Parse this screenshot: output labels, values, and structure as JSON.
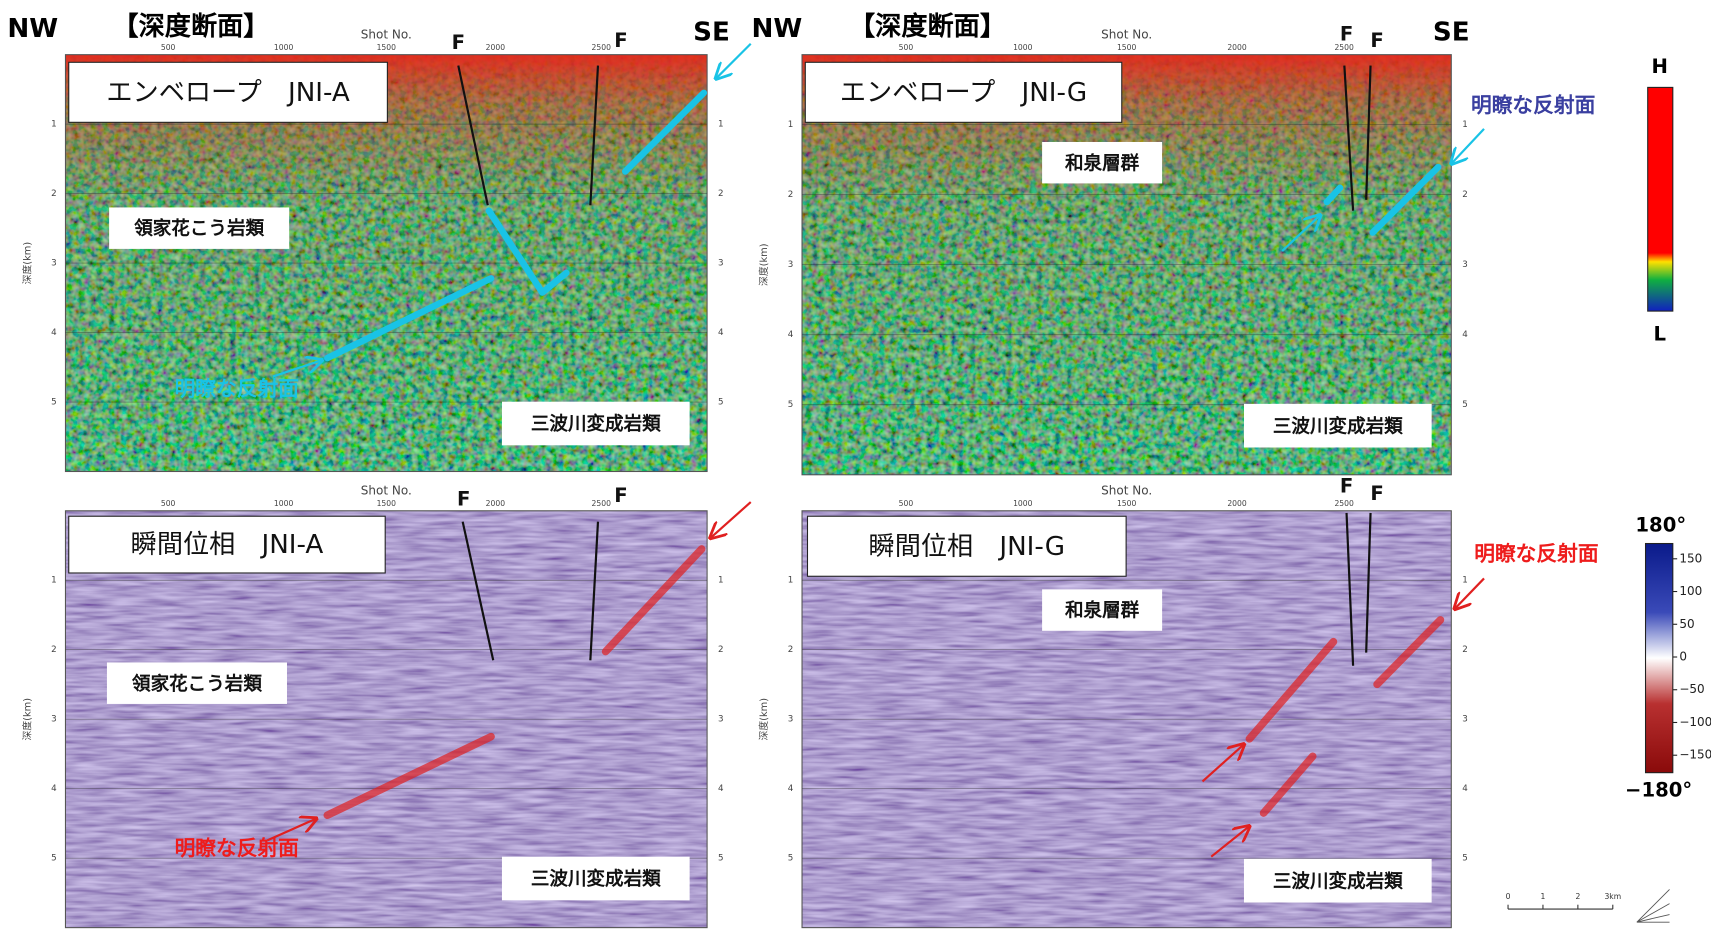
{
  "header": [
    {
      "left": "NW",
      "title": "【深度断面】",
      "right": "SE"
    },
    {
      "left": "NW",
      "title": "【深度断面】",
      "right": "SE"
    }
  ],
  "panels": [
    {
      "kind": "envelope",
      "label": "エンベロープ　JNI-A",
      "x_axis_title": "Shot No.",
      "x_ticks": [
        500,
        1000,
        1500,
        2000,
        2500
      ],
      "y_axis_title": "深度(km)",
      "y_ticks": [
        1,
        2,
        3,
        4,
        5
      ],
      "faults": [
        "F",
        "F"
      ],
      "units": [
        "領家花こう岩類",
        "三波川変成岩類"
      ],
      "reflector_label": "明瞭な反射面",
      "reflector_color": "#19c3e6",
      "reflector_label_color": "#19c3e6"
    },
    {
      "kind": "envelope",
      "label": "エンベロープ　JNI-G",
      "x_axis_title": "Shot No.",
      "x_ticks": [
        500,
        1000,
        1500,
        2000,
        2500
      ],
      "y_axis_title": "深度(km)",
      "y_ticks": [
        1,
        2,
        3,
        4,
        5
      ],
      "faults": [
        "F",
        "F"
      ],
      "units": [
        "和泉層群",
        "三波川変成岩類"
      ],
      "reflector_label": "明瞭な反射面",
      "reflector_color": "#19c3e6",
      "reflector_label_color": "#3a3fa0"
    },
    {
      "kind": "phase",
      "label": "瞬間位相　JNI-A",
      "x_axis_title": "Shot No.",
      "x_ticks": [
        500,
        1000,
        1500,
        2000,
        2500
      ],
      "y_axis_title": "深度(km)",
      "y_ticks": [
        1,
        2,
        3,
        4,
        5
      ],
      "faults": [
        "F",
        "F"
      ],
      "units": [
        "領家花こう岩類",
        "三波川変成岩類"
      ],
      "reflector_label": "明瞭な反射面",
      "reflector_color": "#e02020",
      "reflector_label_color": "#ee1c1c"
    },
    {
      "kind": "phase",
      "label": "瞬間位相　JNI-G",
      "x_axis_title": "Shot No.",
      "x_ticks": [
        500,
        1000,
        1500,
        2000,
        2500
      ],
      "y_axis_title": "深度(km)",
      "y_ticks": [
        1,
        2,
        3,
        4,
        5
      ],
      "faults": [
        "F",
        "F"
      ],
      "units": [
        "和泉層群",
        "三波川変成岩類"
      ],
      "reflector_label": "明瞭な反射面",
      "reflector_color": "#e02020",
      "reflector_label_color": "#ee1c1c"
    }
  ],
  "colorbars": [
    {
      "top": "H",
      "bottom": "L"
    },
    {
      "top": "180°",
      "bottom": "−180°",
      "ticks": [
        "150",
        "100",
        "50",
        "0",
        "−50",
        "−100",
        "−150"
      ]
    }
  ],
  "scale": [
    "0",
    "1",
    "2",
    "3km"
  ]
}
